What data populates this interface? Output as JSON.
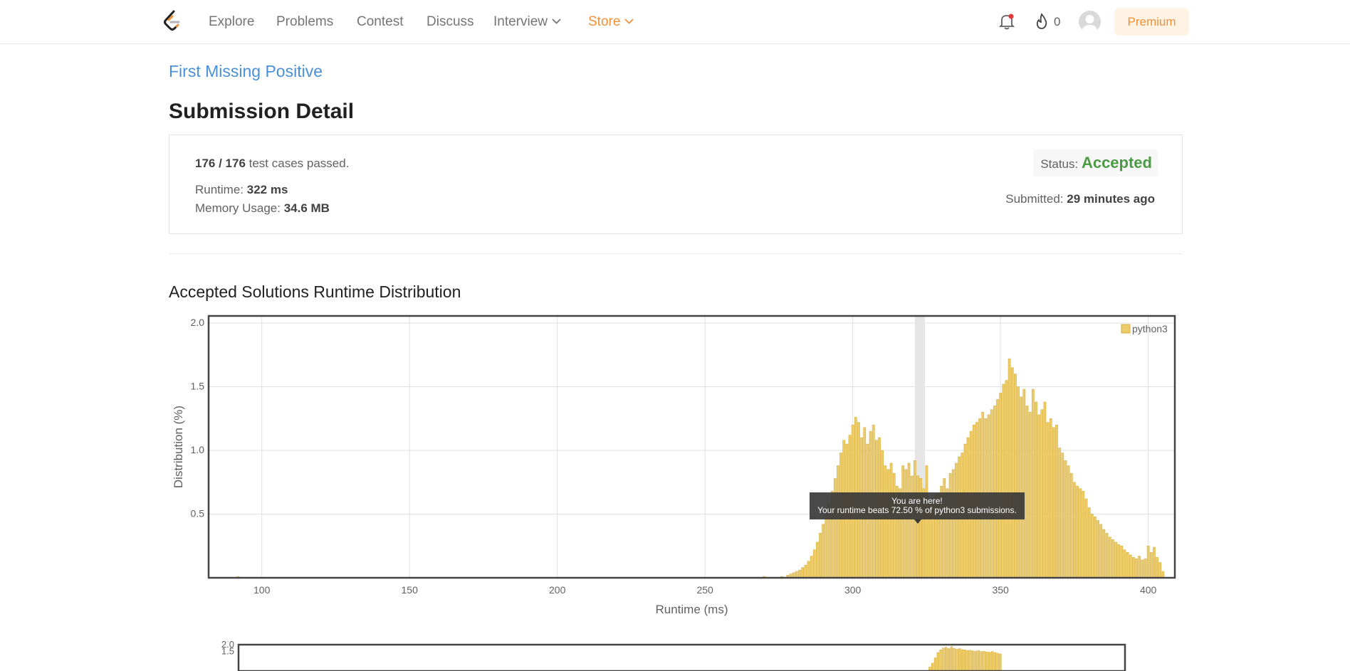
{
  "nav": {
    "items": [
      {
        "label": "Explore"
      },
      {
        "label": "Problems"
      },
      {
        "label": "Contest"
      },
      {
        "label": "Discuss"
      },
      {
        "label": "Interview"
      },
      {
        "label": "Store"
      }
    ],
    "streak_count": "0",
    "premium_label": "Premium",
    "colors": {
      "store": "#f0913a",
      "premium_bg": "#fff3e4",
      "notification_dot": "#e53935"
    }
  },
  "problem": {
    "title": "First Missing Positive"
  },
  "page_title": "Submission Detail",
  "detail": {
    "passed": "176 / 176",
    "passed_suffix": " test cases passed.",
    "runtime_label": "Runtime: ",
    "runtime_value": "322 ms",
    "memory_label": "Memory Usage: ",
    "memory_value": "34.6 MB",
    "status_label": "Status: ",
    "status_value": "Accepted",
    "submitted_label": "Submitted: ",
    "submitted_value": "29 minutes ago",
    "status_color": "#4d9a46"
  },
  "distribution_title": "Accepted Solutions Runtime Distribution",
  "chart_data": [
    {
      "type": "bar",
      "xlabel": "Runtime (ms)",
      "ylabel": "Distribution (%)",
      "xlim": [
        82,
        409
      ],
      "ylim": [
        0,
        2.0
      ],
      "xticks": [
        "100",
        "150",
        "200",
        "250",
        "300",
        "350",
        "400"
      ],
      "yticks": [
        "0.5",
        "1.0",
        "1.5",
        "2.0"
      ],
      "legend": {
        "label": "python3",
        "position": "top-right"
      },
      "grid": true,
      "bar_color": "#eccb6a",
      "highlight_x": 322,
      "tooltip": {
        "line1": "You are here!",
        "line2": "Your runtime beats 72.50 % of python3 submissions."
      },
      "series": [
        {
          "name": "python3",
          "x": [
            92,
            270,
            276,
            278,
            279,
            280,
            281,
            282,
            283,
            284,
            285,
            286,
            287,
            288,
            289,
            290,
            291,
            292,
            293,
            294,
            295,
            296,
            297,
            298,
            299,
            300,
            301,
            302,
            303,
            304,
            305,
            306,
            307,
            308,
            309,
            310,
            311,
            312,
            313,
            314,
            315,
            316,
            317,
            318,
            319,
            320,
            321,
            322,
            323,
            324,
            325,
            326,
            327,
            328,
            329,
            330,
            331,
            332,
            333,
            334,
            335,
            336,
            337,
            338,
            339,
            340,
            341,
            342,
            343,
            344,
            345,
            346,
            347,
            348,
            349,
            350,
            351,
            352,
            353,
            354,
            355,
            356,
            357,
            358,
            359,
            360,
            361,
            362,
            363,
            364,
            365,
            366,
            367,
            368,
            369,
            370,
            371,
            372,
            373,
            374,
            375,
            376,
            377,
            378,
            379,
            380,
            381,
            382,
            383,
            384,
            385,
            386,
            387,
            388,
            389,
            390,
            391,
            392,
            393,
            394,
            395,
            396,
            397,
            398,
            399,
            400,
            401,
            402,
            403,
            404,
            405
          ],
          "values": [
            0.01,
            0.01,
            0.01,
            0.02,
            0.03,
            0.04,
            0.05,
            0.06,
            0.08,
            0.1,
            0.13,
            0.17,
            0.22,
            0.28,
            0.35,
            0.42,
            0.5,
            0.58,
            0.68,
            0.78,
            0.88,
            0.98,
            1.08,
            1.05,
            1.12,
            1.2,
            1.26,
            1.22,
            1.1,
            1.18,
            1.05,
            1.15,
            1.2,
            1.08,
            1.1,
            1.0,
            0.88,
            0.85,
            0.9,
            0.82,
            0.72,
            0.7,
            0.88,
            0.85,
            0.9,
            0.8,
            0.92,
            0.8,
            0.78,
            0.7,
            0.88,
            0.62,
            0.6,
            0.65,
            0.66,
            0.72,
            0.78,
            0.7,
            0.82,
            0.85,
            0.9,
            0.95,
            0.98,
            1.05,
            1.1,
            1.15,
            1.2,
            1.22,
            1.25,
            1.3,
            1.25,
            1.28,
            1.32,
            1.35,
            1.4,
            1.45,
            1.52,
            1.55,
            1.72,
            1.65,
            1.6,
            1.5,
            1.42,
            1.48,
            1.35,
            1.3,
            1.48,
            1.38,
            1.28,
            1.32,
            1.38,
            1.22,
            1.25,
            1.18,
            1.2,
            1.02,
            0.98,
            0.92,
            0.88,
            0.82,
            0.75,
            0.72,
            0.7,
            0.68,
            0.62,
            0.55,
            0.5,
            0.48,
            0.45,
            0.42,
            0.38,
            0.35,
            0.32,
            0.3,
            0.28,
            0.26,
            0.25,
            0.22,
            0.2,
            0.18,
            0.16,
            0.15,
            0.17,
            0.14,
            0.15,
            0.25,
            0.2,
            0.24,
            0.16,
            0.12,
            0.05
          ]
        }
      ]
    },
    {
      "type": "bar",
      "xlim": [
        82,
        409
      ],
      "ylim": [
        0,
        2.0
      ],
      "yticks": [
        "1.5",
        "2.0"
      ],
      "bar_color": "#eccb6a",
      "series": [
        {
          "name": "python3",
          "x": [
            337,
            338,
            339,
            340,
            341,
            342,
            343,
            344,
            345,
            346,
            347,
            348,
            349,
            350,
            351,
            352,
            353,
            354,
            355,
            356,
            357,
            358,
            359,
            360,
            361,
            362,
            363
          ],
          "values": [
            0.3,
            0.6,
            1.0,
            1.4,
            1.6,
            1.75,
            1.8,
            1.7,
            1.85,
            1.72,
            1.65,
            1.7,
            1.62,
            1.6,
            1.55,
            1.58,
            1.52,
            1.5,
            1.55,
            1.48,
            1.5,
            1.45,
            1.42,
            1.48,
            1.4,
            1.35,
            1.3
          ]
        }
      ]
    }
  ]
}
